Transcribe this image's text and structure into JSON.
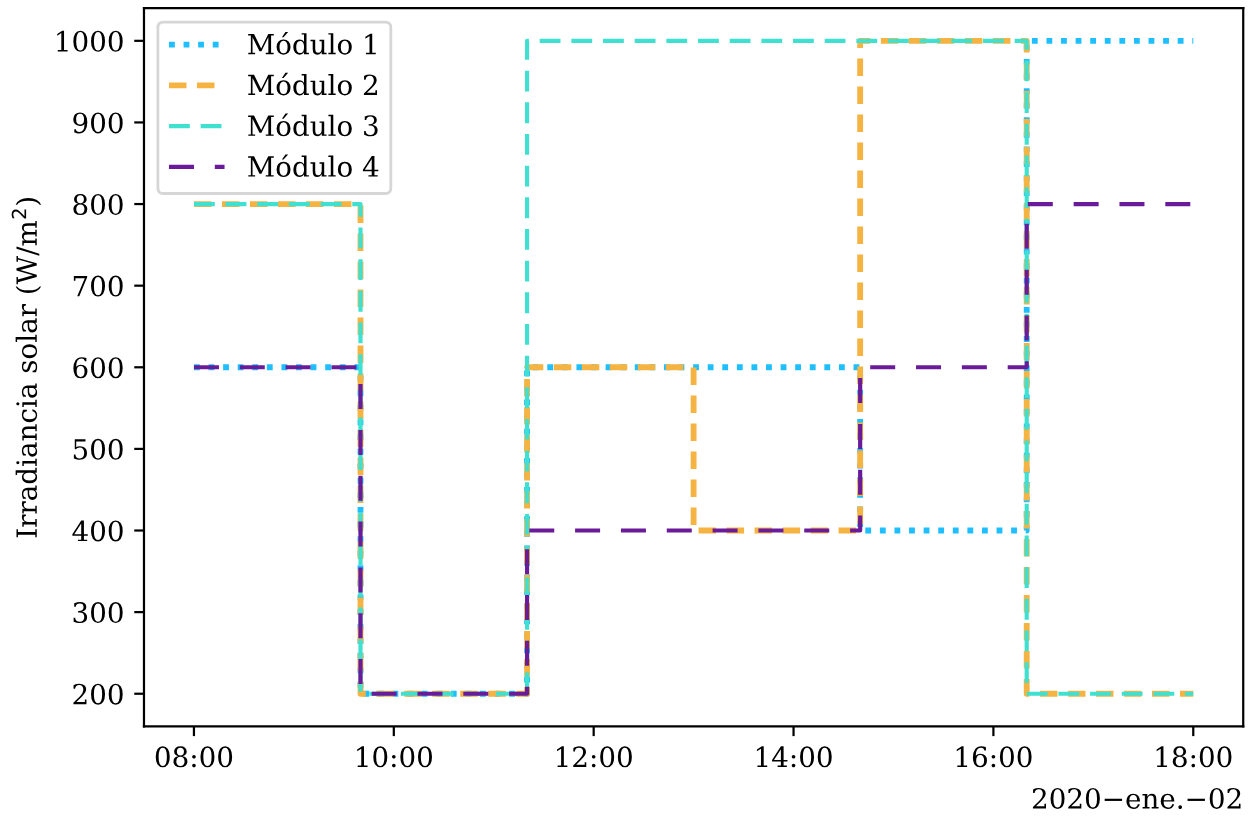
{
  "chart_data": {
    "type": "step",
    "ylabel": "Irradiancia solar (W/m$^{2}$)",
    "x": [
      "2020-01-02T08:00",
      "2020-01-02T09:40",
      "2020-01-02T11:20",
      "2020-01-02T13:00",
      "2020-01-02T14:40",
      "2020-01-02T16:20",
      "2020-01-02T18:00"
    ],
    "series": [
      {
        "name": "Módulo 1",
        "color": "#1fbfff",
        "line_style": "dotted",
        "values": [
          600,
          200,
          600,
          600,
          400,
          1000,
          1000
        ]
      },
      {
        "name": "Módulo 2",
        "color": "#f5b342",
        "line_style": "dashed",
        "values": [
          800,
          200,
          600,
          400,
          1000,
          200,
          200
        ]
      },
      {
        "name": "Módulo 3",
        "color": "#40e0d0",
        "line_style": "dashed",
        "values": [
          800,
          200,
          1000,
          1000,
          1000,
          200,
          200
        ]
      },
      {
        "name": "Módulo 4",
        "color": "#6a1b9a",
        "line_style": "dashed",
        "values": [
          600,
          200,
          400,
          400,
          600,
          800,
          800
        ]
      }
    ],
    "xlim": [
      "2020-01-02T07:30",
      "2020-01-02T18:30"
    ],
    "xticks": [
      {
        "value": "2020-01-02T08:00",
        "label": "08:00"
      },
      {
        "value": "2020-01-02T10:00",
        "label": "10:00"
      },
      {
        "value": "2020-01-02T12:00",
        "label": "12:00"
      },
      {
        "value": "2020-01-02T14:00",
        "label": "14:00"
      },
      {
        "value": "2020-01-02T16:00",
        "label": "16:00"
      },
      {
        "value": "2020-01-02T18:00",
        "label": "18:00"
      }
    ],
    "ylim": [
      160,
      1040
    ],
    "yticks": [
      200,
      300,
      400,
      500,
      600,
      700,
      800,
      900,
      1000
    ],
    "annotations": [
      "2020−ene.−02"
    ],
    "legend": "top left",
    "grid": false
  }
}
